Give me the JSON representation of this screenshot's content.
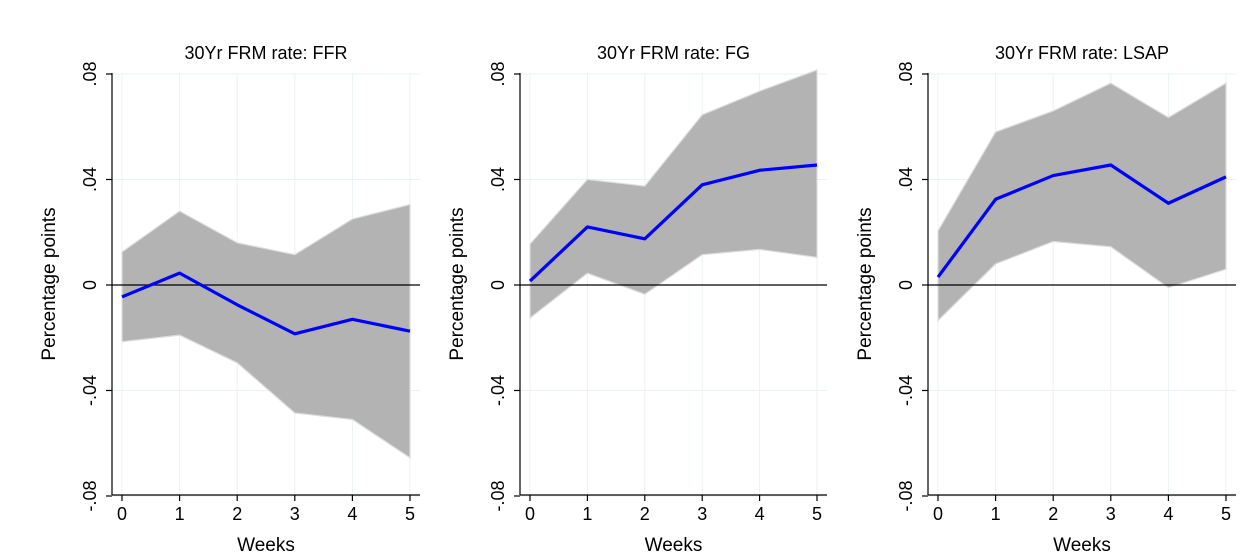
{
  "chart_data": [
    {
      "type": "line",
      "title": "30Yr FRM rate: FFR",
      "xlabel": "Weeks",
      "ylabel": "Percentage points",
      "x": [
        0,
        1,
        2,
        3,
        4,
        5
      ],
      "xticks": [
        "0",
        "1",
        "2",
        "3",
        "4",
        "5"
      ],
      "yticks": [
        {
          "value": -0.08,
          "label": "-.08"
        },
        {
          "value": -0.04,
          "label": "-.04"
        },
        {
          "value": 0,
          "label": "0"
        },
        {
          "value": 0.04,
          "label": ".04"
        },
        {
          "value": 0.08,
          "label": ".08"
        }
      ],
      "xlim": [
        0,
        5
      ],
      "ylim": [
        -0.08,
        0.08
      ],
      "grid": true,
      "series": [
        {
          "role": "estimate",
          "values": [
            -0.0045,
            0.0045,
            -0.0075,
            -0.0185,
            -0.013,
            -0.0175
          ],
          "color": "#0000ff"
        },
        {
          "role": "band-upper",
          "values": [
            0.0125,
            0.028,
            0.016,
            0.0115,
            0.025,
            0.0305
          ],
          "color": "#b3b3b3"
        },
        {
          "role": "band-lower",
          "values": [
            -0.0215,
            -0.019,
            -0.0295,
            -0.0485,
            -0.051,
            -0.0655
          ],
          "color": "#b3b3b3"
        }
      ],
      "reference_line": 0
    },
    {
      "type": "line",
      "title": "30Yr FRM rate: FG",
      "xlabel": "Weeks",
      "ylabel": "Percentage points",
      "x": [
        0,
        1,
        2,
        3,
        4,
        5
      ],
      "xticks": [
        "0",
        "1",
        "2",
        "3",
        "4",
        "5"
      ],
      "yticks": [
        {
          "value": -0.08,
          "label": "-.08"
        },
        {
          "value": -0.04,
          "label": "-.04"
        },
        {
          "value": 0,
          "label": "0"
        },
        {
          "value": 0.04,
          "label": ".04"
        },
        {
          "value": 0.08,
          "label": ".08"
        }
      ],
      "xlim": [
        0,
        5
      ],
      "ylim": [
        -0.08,
        0.08
      ],
      "grid": true,
      "series": [
        {
          "role": "estimate",
          "values": [
            0.0015,
            0.022,
            0.0175,
            0.038,
            0.0435,
            0.0455
          ],
          "color": "#0000ff"
        },
        {
          "role": "band-upper",
          "values": [
            0.0155,
            0.04,
            0.0375,
            0.0645,
            0.0735,
            0.0815
          ],
          "color": "#b3b3b3"
        },
        {
          "role": "band-lower",
          "values": [
            -0.0125,
            0.0045,
            -0.0035,
            0.0115,
            0.0135,
            0.0105
          ],
          "color": "#b3b3b3"
        }
      ],
      "reference_line": 0
    },
    {
      "type": "line",
      "title": "30Yr FRM rate: LSAP",
      "xlabel": "Weeks",
      "ylabel": "Percentage points",
      "x": [
        0,
        1,
        2,
        3,
        4,
        5
      ],
      "xticks": [
        "0",
        "1",
        "2",
        "3",
        "4",
        "5"
      ],
      "yticks": [
        {
          "value": -0.08,
          "label": "-.08"
        },
        {
          "value": -0.04,
          "label": "-.04"
        },
        {
          "value": 0,
          "label": "0"
        },
        {
          "value": 0.04,
          "label": ".04"
        },
        {
          "value": 0.08,
          "label": ".08"
        }
      ],
      "xlim": [
        0,
        5
      ],
      "ylim": [
        -0.08,
        0.08
      ],
      "grid": true,
      "series": [
        {
          "role": "estimate",
          "values": [
            0.003,
            0.0325,
            0.0415,
            0.0455,
            0.031,
            0.041
          ],
          "color": "#0000ff"
        },
        {
          "role": "band-upper",
          "values": [
            0.0205,
            0.058,
            0.066,
            0.0765,
            0.0635,
            0.0765
          ],
          "color": "#b3b3b3"
        },
        {
          "role": "band-lower",
          "values": [
            -0.0135,
            0.008,
            0.0165,
            0.0145,
            -0.001,
            0.006
          ],
          "color": "#b3b3b3"
        }
      ],
      "reference_line": 0
    }
  ]
}
